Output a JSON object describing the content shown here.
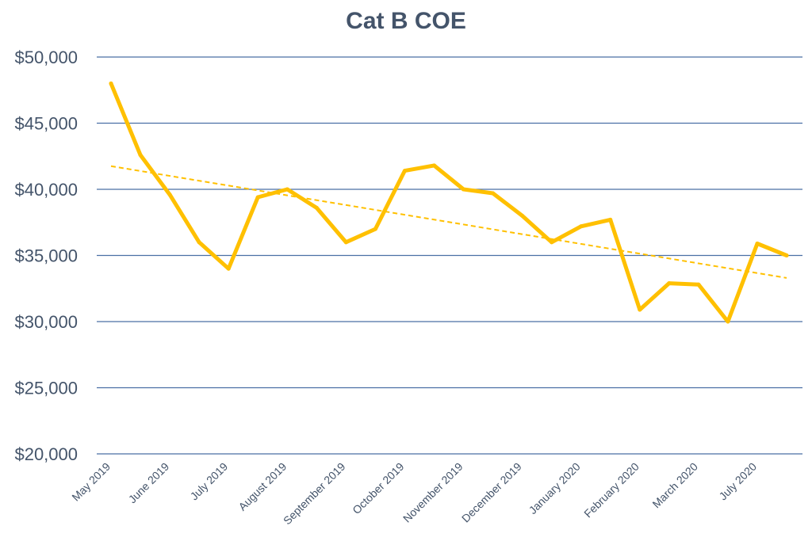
{
  "chart_data": {
    "type": "line",
    "title": "Cat B COE",
    "xlabel": "",
    "ylabel": "",
    "ylim": [
      20000,
      50000
    ],
    "yticks": [
      "$20,000",
      "$25,000",
      "$30,000",
      "$35,000",
      "$40,000",
      "$45,000",
      "$50,000"
    ],
    "ytick_values": [
      20000,
      25000,
      30000,
      35000,
      40000,
      45000,
      50000
    ],
    "grid": true,
    "legend": "none",
    "x_label_indices": [
      0,
      2,
      4,
      6,
      8,
      10,
      12,
      14,
      16,
      18,
      20,
      22
    ],
    "categories": [
      "May 2019",
      "",
      "June 2019",
      "",
      "July 2019",
      "",
      "August 2019",
      "",
      "September 2019",
      "",
      "October 2019",
      "",
      "November 2019",
      "",
      "December 2019",
      "",
      "January 2020",
      "",
      "February 2020",
      "",
      "March 2020",
      "",
      "July 2020",
      ""
    ],
    "series": [
      {
        "values": [
          48000,
          42600,
          39600,
          36000,
          34000,
          39400,
          40000,
          38600,
          36000,
          37000,
          41400,
          41800,
          40000,
          39700,
          38000,
          36000,
          37200,
          37700,
          30900,
          32900,
          32800,
          30000,
          35900,
          35000
        ],
        "color": "#ffc000"
      }
    ],
    "trendline": {
      "style": "linear-dashed",
      "start": 41750,
      "end": 33300,
      "color": "#ffc000"
    }
  }
}
